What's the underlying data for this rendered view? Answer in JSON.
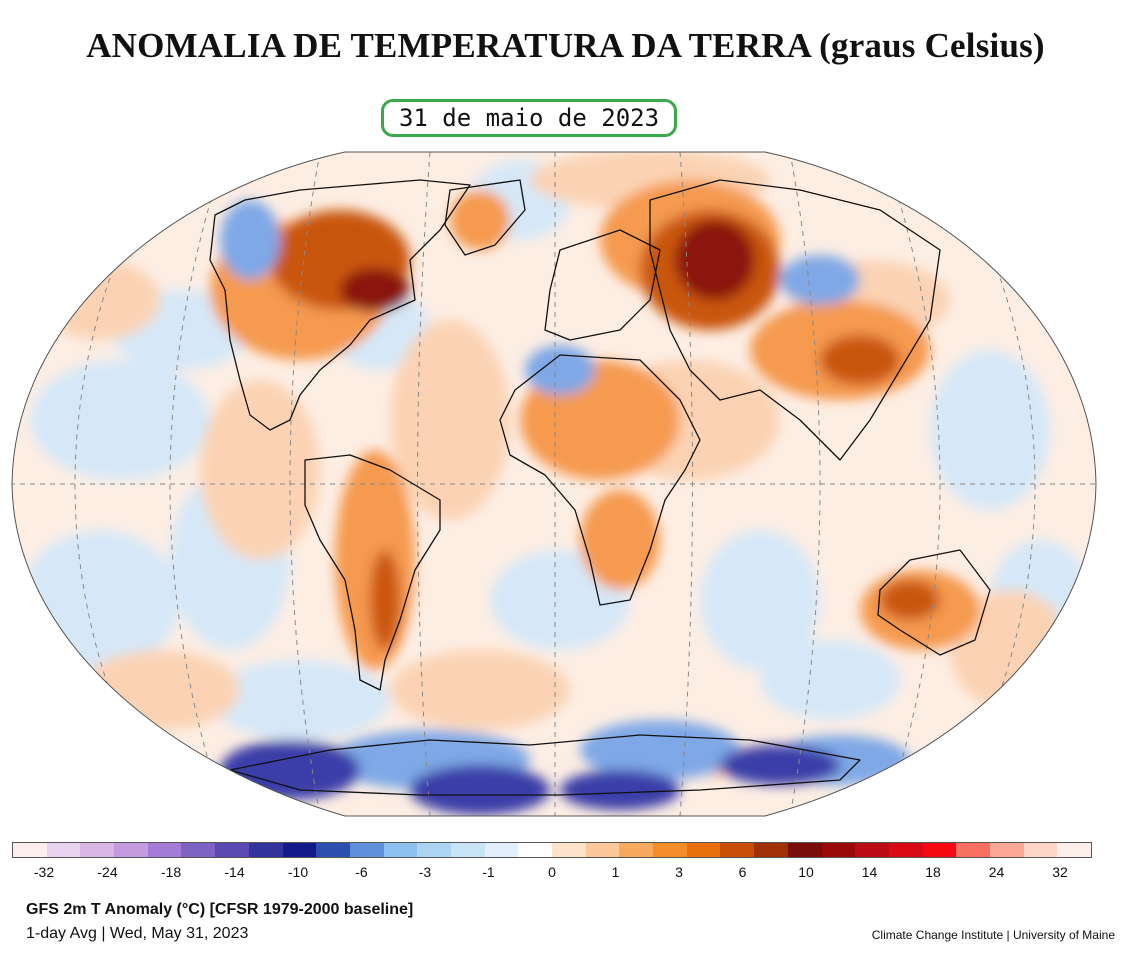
{
  "title": "ANOMALIA DE TEMPERATURA DA TERRA (graus Celsius)",
  "date_label": "31 de maio de 2023",
  "colorbar": {
    "colors": [
      "#fdeef0",
      "#ead3ee",
      "#d9b6e6",
      "#c59be0",
      "#a47cd8",
      "#7e63c4",
      "#5a49b0",
      "#34339c",
      "#131a8a",
      "#2c4fb0",
      "#5f8fd8",
      "#8ec0f0",
      "#aed4f4",
      "#c9e3f7",
      "#e3f0fb",
      "#ffffff",
      "#fde3cc",
      "#fcc89a",
      "#f9a860",
      "#f48c2c",
      "#e86f0c",
      "#c94f08",
      "#a03006",
      "#7a0c0a",
      "#9a0a0a",
      "#bb0b14",
      "#d90a16",
      "#f40a10",
      "#f87060",
      "#fca898",
      "#fdd6c8",
      "#fdf0ea"
    ],
    "tick_labels": [
      "-32",
      "-24",
      "-18",
      "-14",
      "-10",
      "-6",
      "-3",
      "-1",
      "0",
      "1",
      "3",
      "6",
      "10",
      "14",
      "18",
      "24",
      "32"
    ]
  },
  "footer": {
    "line1": "GFS 2m T Anomaly (°C) [CFSR 1979-2000 baseline]",
    "line2": "1-day Avg | Wed, May 31, 2023",
    "credit": "Climate Change Institute | University of Maine"
  },
  "map_colors": {
    "base": "#fdeee4",
    "ocean_light_blue": "#d6e8f8",
    "ocean_light_orange": "#fbd3b4",
    "warm": "#f59a50",
    "hot": "#c9560c",
    "very_hot": "#8a1208",
    "cold": "#7ea8e6",
    "very_cold": "#3a3ea8",
    "grid": "#888888",
    "coast": "#111111"
  }
}
